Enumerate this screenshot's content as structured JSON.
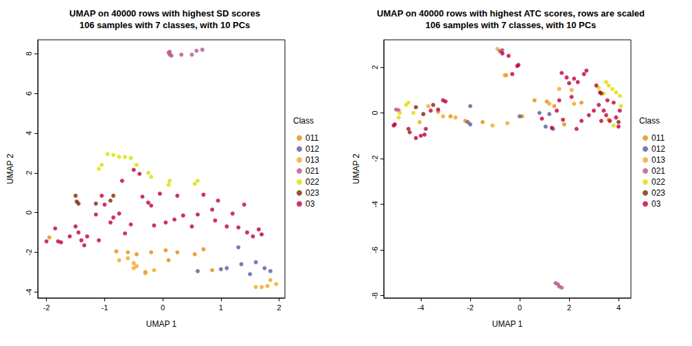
{
  "chart_data": [
    {
      "type": "scatter",
      "title": "UMAP on 40000 rows with highest SD scores\n106 samples with 7 classes, with 10 PCs",
      "xlabel": "UMAP 1",
      "ylabel": "UMAP 2",
      "legend_title": "Class",
      "xlim": [
        -2.15,
        2.1
      ],
      "ylim": [
        -4.3,
        8.7
      ],
      "xticks": [
        -2,
        -1,
        0,
        1,
        2
      ],
      "yticks": [
        -4,
        -2,
        0,
        2,
        4,
        6,
        8
      ],
      "grid": false,
      "legend": "right",
      "marker": "circle",
      "series": [
        {
          "name": "011",
          "color": "#E8890C",
          "x": [
            -1.95,
            -0.8,
            -0.6,
            -0.45,
            -0.2,
            0.05,
            0.25,
            0.55,
            0.7,
            0.85,
            0.1,
            -0.3
          ],
          "y": [
            -1.25,
            -1.95,
            -2.0,
            -2.1,
            -2.0,
            -1.9,
            -2.0,
            -2.1,
            -1.85,
            -2.9,
            -2.4,
            -3.0
          ]
        },
        {
          "name": "012",
          "color": "#5E5A9E",
          "x": [
            0.6,
            1.0,
            1.1,
            1.3,
            1.35,
            1.5,
            1.6,
            1.75,
            1.85
          ],
          "y": [
            -2.95,
            -2.85,
            -2.8,
            -1.75,
            -2.6,
            -3.1,
            -2.5,
            -2.8,
            -2.95
          ]
        },
        {
          "name": "013",
          "color": "#F2A51C",
          "x": [
            -0.75,
            -0.6,
            -0.5,
            -0.45,
            -0.3,
            -0.15,
            -0.5,
            1.6,
            1.7,
            1.8,
            1.85,
            1.95
          ],
          "y": [
            -2.4,
            -2.3,
            -2.55,
            -2.7,
            -3.05,
            -2.9,
            -2.8,
            -3.75,
            -3.75,
            -3.7,
            -3.4,
            -3.6
          ]
        },
        {
          "name": "021",
          "color": "#B8558A",
          "x": [
            0.1,
            0.12,
            0.15,
            0.32,
            0.5,
            0.58,
            0.68,
            0.12
          ],
          "y": [
            8.05,
            7.95,
            7.9,
            7.95,
            7.95,
            8.15,
            8.2,
            8.1
          ]
        },
        {
          "name": "022",
          "color": "#DDDD00",
          "x": [
            -1.1,
            -1.05,
            -0.95,
            -0.85,
            -0.75,
            -0.65,
            -0.55,
            -0.45,
            -0.25,
            -0.2,
            0.1,
            0.12,
            0.55,
            0.6
          ],
          "y": [
            2.2,
            2.4,
            2.95,
            2.9,
            2.8,
            2.8,
            2.75,
            2.4,
            2.0,
            1.8,
            1.4,
            1.6,
            1.45,
            1.6
          ]
        },
        {
          "name": "023",
          "color": "#7F2704",
          "x": [
            -1.5,
            -1.48,
            -1.45,
            -1.15,
            -0.9,
            -0.85
          ],
          "y": [
            0.85,
            0.55,
            0.45,
            0.45,
            0.6,
            0.85
          ]
        },
        {
          "name": "03",
          "color": "#C2003A",
          "x": [
            -2.0,
            -1.85,
            -1.8,
            -1.75,
            -1.6,
            -1.5,
            -1.45,
            -1.4,
            -1.35,
            -1.3,
            -1.15,
            -1.1,
            -1.05,
            -1.0,
            -0.9,
            -0.85,
            -0.75,
            -0.7,
            -0.65,
            -0.55,
            -0.5,
            -0.4,
            -0.35,
            -0.25,
            -0.2,
            -0.15,
            -0.05,
            0.05,
            0.2,
            0.25,
            0.35,
            0.5,
            0.6,
            0.7,
            0.85,
            0.9,
            0.95,
            1.1,
            1.2,
            1.3,
            1.4,
            1.45,
            1.55,
            1.65,
            1.7
          ],
          "y": [
            -1.45,
            -0.8,
            -1.45,
            -1.5,
            -1.2,
            -0.7,
            -1.0,
            -1.4,
            -1.65,
            -1.2,
            -0.1,
            -1.4,
            0.85,
            0.4,
            -0.5,
            -0.25,
            -0.05,
            1.6,
            -1.05,
            -0.6,
            2.15,
            1.95,
            0.8,
            0.5,
            0.35,
            -0.65,
            0.95,
            -0.5,
            -0.35,
            0.85,
            -0.15,
            -0.7,
            -0.1,
            0.9,
            0.15,
            -0.4,
            0.6,
            -0.7,
            -0.05,
            -0.75,
            0.4,
            -1.0,
            -1.2,
            -0.85,
            -1.1
          ]
        }
      ]
    },
    {
      "type": "scatter",
      "title": "UMAP on 40000 rows with highest ATC scores, rows are scaled\n106 samples with 7 classes, with 10 PCs",
      "xlabel": "UMAP 1",
      "ylabel": "UMAP 2",
      "legend_title": "Class",
      "xlim": [
        -5.5,
        4.5
      ],
      "ylim": [
        -8.1,
        3.2
      ],
      "xticks": [
        -4,
        -2,
        0,
        2,
        4
      ],
      "yticks": [
        -8,
        -6,
        -4,
        -2,
        0,
        2
      ],
      "grid": false,
      "legend": "right",
      "marker": "circle",
      "series": [
        {
          "name": "011",
          "color": "#E8890C",
          "x": [
            -3.3,
            -2.8,
            -2.2,
            -1.5,
            0.1,
            0.6,
            1.1,
            1.4,
            1.8,
            -0.55,
            2.5,
            3.6
          ],
          "y": [
            0.05,
            -0.15,
            -0.35,
            -0.4,
            -0.15,
            0.55,
            0.5,
            0.3,
            -0.5,
            1.65,
            0.45,
            -0.3
          ]
        },
        {
          "name": "012",
          "color": "#5E5A9E",
          "x": [
            -2.0,
            -2.1,
            -2.0,
            0.0,
            0.8,
            1.05,
            1.2,
            -0.75,
            1.35
          ],
          "y": [
            0.3,
            -0.4,
            -0.5,
            -0.15,
            0.0,
            -0.6,
            -0.05,
            2.7,
            -0.7
          ]
        },
        {
          "name": "013",
          "color": "#F2A51C",
          "x": [
            -3.7,
            -3.1,
            -2.6,
            -1.1,
            -0.5,
            -0.6,
            -0.9,
            1.2,
            1.6,
            2.1,
            2.2,
            -4.05
          ],
          "y": [
            0.3,
            -0.15,
            -0.2,
            -0.55,
            -0.45,
            1.65,
            2.8,
            0.4,
            1.05,
            1.0,
            0.4,
            -0.4
          ]
        },
        {
          "name": "021",
          "color": "#B8558A",
          "x": [
            -5.0,
            -4.9,
            1.45,
            1.55,
            1.6,
            1.7,
            -0.7,
            -0.8
          ],
          "y": [
            0.15,
            0.12,
            -7.45,
            -7.5,
            -7.6,
            -7.65,
            2.75,
            2.7
          ]
        },
        {
          "name": "022",
          "color": "#DDDD00",
          "x": [
            -4.9,
            -4.85,
            -4.6,
            -4.5,
            -4.3,
            3.5,
            3.6,
            3.75,
            3.9,
            4.05,
            4.1,
            3.8,
            3.4,
            3.2
          ],
          "y": [
            -0.2,
            0.0,
            0.35,
            0.45,
            0.0,
            1.35,
            1.2,
            1.05,
            0.9,
            0.75,
            0.3,
            -0.55,
            0.85,
            1.1
          ]
        },
        {
          "name": "023",
          "color": "#7F2704",
          "x": [
            -4.5,
            -4.2,
            -3.9,
            -3.5,
            3.3,
            4.0
          ],
          "y": [
            -0.7,
            0.25,
            -0.05,
            0.35,
            0.85,
            -0.4
          ]
        },
        {
          "name": "03",
          "color": "#C2003A",
          "x": [
            -5.1,
            -5.05,
            -4.45,
            -4.2,
            -4.0,
            -3.85,
            -3.8,
            -3.6,
            -3.3,
            -3.1,
            -3.0,
            -0.3,
            -0.1,
            -0.05,
            -0.45,
            -0.7,
            0.9,
            1.3,
            1.5,
            1.6,
            1.7,
            1.75,
            1.9,
            2.0,
            2.1,
            2.2,
            2.3,
            2.35,
            2.5,
            2.6,
            2.7,
            2.8,
            3.0,
            3.1,
            3.2,
            3.3,
            3.4,
            3.5,
            3.55,
            3.65,
            3.8,
            3.9,
            4.0,
            4.05,
            3.25
          ],
          "y": [
            -0.55,
            -0.5,
            -0.85,
            -1.1,
            -1.0,
            -0.95,
            -0.7,
            0.1,
            0.15,
            0.55,
            0.5,
            1.7,
            2.05,
            2.1,
            2.5,
            2.6,
            -0.25,
            -0.65,
            0.1,
            0.55,
            1.75,
            -0.3,
            1.55,
            1.3,
            0.7,
            1.5,
            -0.7,
            1.35,
            -0.35,
            1.7,
            1.85,
            -0.1,
            0.1,
            1.2,
            0.35,
            -0.35,
            0.1,
            -0.1,
            0.55,
            -0.35,
            0.45,
            -0.2,
            -0.6,
            0.1,
            0.9
          ]
        }
      ]
    }
  ]
}
